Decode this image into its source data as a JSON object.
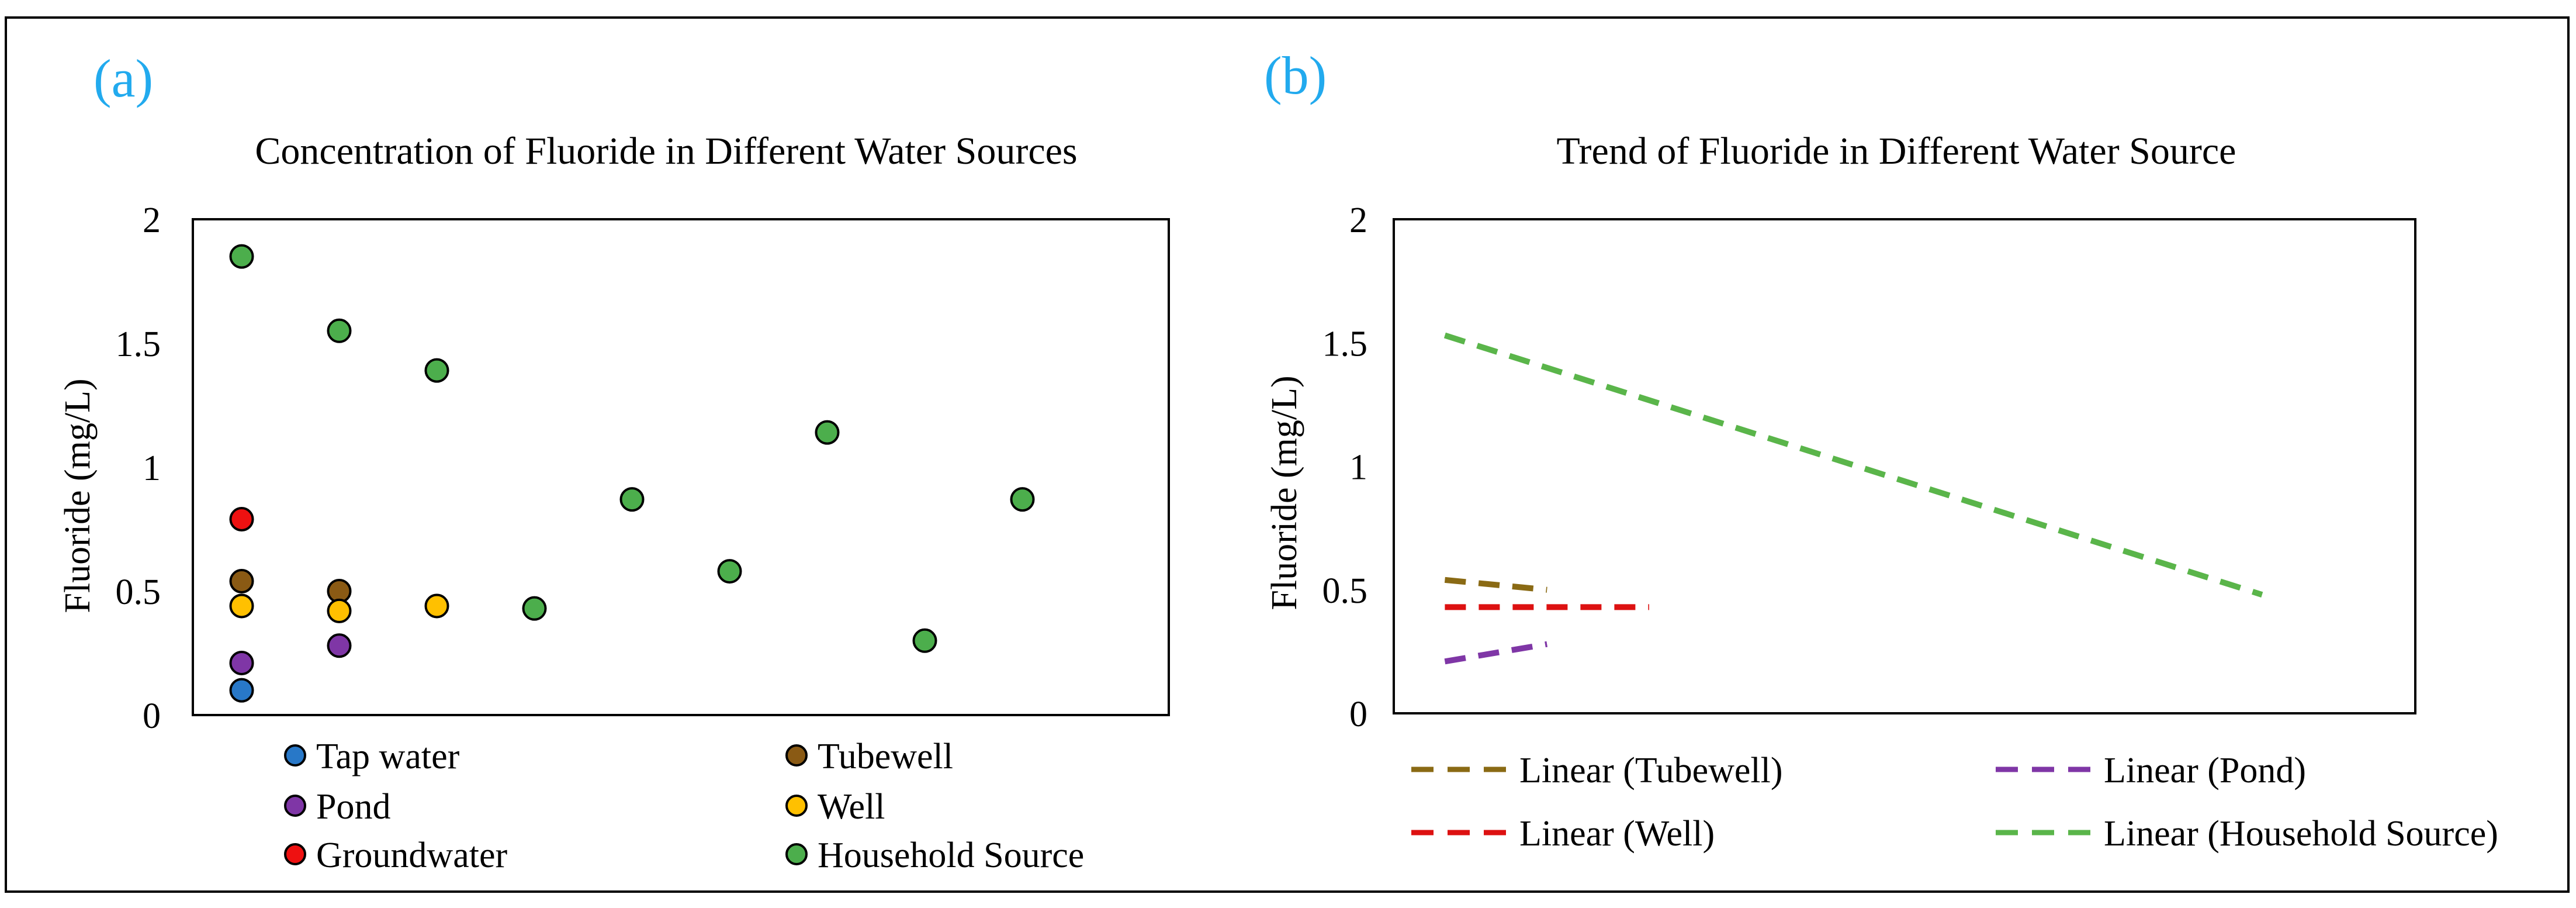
{
  "colors": {
    "tap": "#2878c8",
    "tubewell": "#8a5a14",
    "pond": "#7f36a6",
    "well": "#ffc000",
    "groundwater": "#ee1111",
    "household": "#4cae4c",
    "panel_label": "#22aaee",
    "trend_tubewell": "#8a6a14",
    "trend_pond": "#7f36a6",
    "trend_well": "#dd1111",
    "trend_household": "#5ab54a"
  },
  "chart_data": [
    {
      "type": "scatter",
      "panel_label": "(a)",
      "title": "Concentration of Fluoride in Different Water Sources",
      "xlabel": "",
      "ylabel": "Fluoride (mg/L)",
      "xlim": [
        0.5,
        10.5
      ],
      "ylim": [
        0,
        2
      ],
      "yticks": [
        "0",
        "0.5",
        "1",
        "1.5",
        "2"
      ],
      "series": [
        {
          "key": "tap",
          "name": "Tap water",
          "x": [
            1
          ],
          "y": [
            0.1
          ]
        },
        {
          "key": "tubewell",
          "name": "Tubewell",
          "x": [
            1,
            2
          ],
          "y": [
            0.54,
            0.5
          ]
        },
        {
          "key": "pond",
          "name": "Pond",
          "x": [
            1,
            2
          ],
          "y": [
            0.21,
            0.28
          ]
        },
        {
          "key": "well",
          "name": "Well",
          "x": [
            1,
            2,
            3
          ],
          "y": [
            0.44,
            0.42,
            0.44
          ]
        },
        {
          "key": "groundwater",
          "name": "Groundwater",
          "x": [
            1
          ],
          "y": [
            0.79
          ]
        },
        {
          "key": "household",
          "name": "Household Source",
          "x": [
            1,
            2,
            3,
            4,
            5,
            6,
            7,
            8,
            9
          ],
          "y": [
            1.85,
            1.55,
            1.39,
            0.43,
            0.87,
            0.58,
            1.14,
            0.3,
            0.87
          ]
        }
      ]
    },
    {
      "type": "line",
      "panel_label": "(b)",
      "title": "Trend  of Fluoride in Different Water Source",
      "xlabel": "",
      "ylabel": "Fluoride (mg/L)",
      "xlim": [
        0.5,
        10.5
      ],
      "ylim": [
        0,
        2
      ],
      "yticks": [
        "0",
        "0.5",
        "1",
        "1.5",
        "2"
      ],
      "series": [
        {
          "key": "trend_tubewell",
          "name": "Linear (Tubewell)",
          "x": [
            1,
            2
          ],
          "y": [
            0.54,
            0.5
          ]
        },
        {
          "key": "trend_pond",
          "name": "Linear (Pond)",
          "x": [
            1,
            2
          ],
          "y": [
            0.21,
            0.28
          ]
        },
        {
          "key": "trend_well",
          "name": "Linear (Well)",
          "x": [
            1,
            3
          ],
          "y": [
            0.43,
            0.43
          ]
        },
        {
          "key": "trend_household",
          "name": "Linear (Household Source)",
          "x": [
            1,
            9
          ],
          "y": [
            1.53,
            0.48
          ]
        }
      ]
    }
  ]
}
